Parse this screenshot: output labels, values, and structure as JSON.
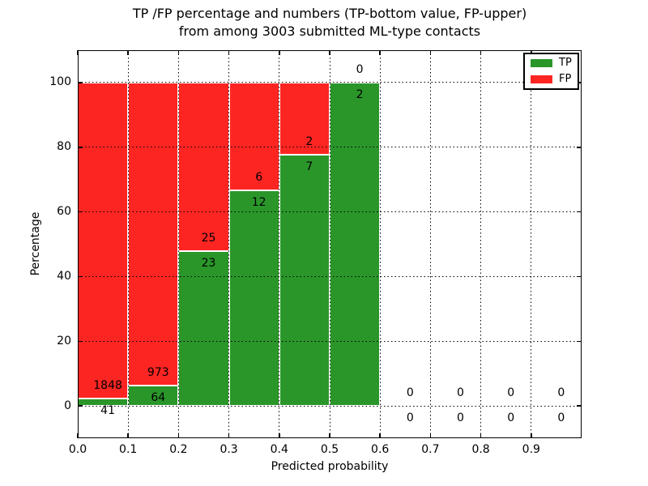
{
  "chart_data": {
    "type": "bar",
    "stacked": true,
    "orientation": "vertical",
    "title": "TP /FP percentage and numbers (TP-bottom value, FP-upper) from among 3003 submitted ML-type contacts",
    "title_lines": [
      "TP /FP percentage and numbers (TP-bottom value, FP-upper)",
      "from among 3003 submitted ML-type contacts"
    ],
    "xlabel": "Predicted probability",
    "ylabel": "Percentage",
    "xlim": [
      0.0,
      1.0
    ],
    "ylim": [
      -10,
      110
    ],
    "x_ticks": [
      "0.0",
      "0.1",
      "0.2",
      "0.3",
      "0.4",
      "0.5",
      "0.6",
      "0.7",
      "0.8",
      "0.9"
    ],
    "y_ticks": [
      0,
      20,
      40,
      60,
      80,
      100
    ],
    "grid": true,
    "grid_style": "dotted",
    "total_contacts": 3003,
    "bins": [
      {
        "range": [
          0.0,
          0.1
        ],
        "tp": 41,
        "fp": 1848,
        "tp_pct": 2.2
      },
      {
        "range": [
          0.1,
          0.2
        ],
        "tp": 64,
        "fp": 973,
        "tp_pct": 6.2
      },
      {
        "range": [
          0.2,
          0.3
        ],
        "tp": 23,
        "fp": 25,
        "tp_pct": 47.9
      },
      {
        "range": [
          0.3,
          0.4
        ],
        "tp": 12,
        "fp": 6,
        "tp_pct": 66.7
      },
      {
        "range": [
          0.4,
          0.5
        ],
        "tp": 7,
        "fp": 2,
        "tp_pct": 77.8
      },
      {
        "range": [
          0.5,
          0.6
        ],
        "tp": 2,
        "fp": 0,
        "tp_pct": 100.0
      },
      {
        "range": [
          0.6,
          0.7
        ],
        "tp": 0,
        "fp": 0,
        "tp_pct": null
      },
      {
        "range": [
          0.7,
          0.8
        ],
        "tp": 0,
        "fp": 0,
        "tp_pct": null
      },
      {
        "range": [
          0.8,
          0.9
        ],
        "tp": 0,
        "fp": 0,
        "tp_pct": null
      },
      {
        "range": [
          0.9,
          1.0
        ],
        "tp": 0,
        "fp": 0,
        "tp_pct": null
      }
    ],
    "series": [
      {
        "name": "TP",
        "color": "#2a962a"
      },
      {
        "name": "FP",
        "color": "#fd2522"
      }
    ],
    "legend": {
      "position": "upper right"
    }
  }
}
